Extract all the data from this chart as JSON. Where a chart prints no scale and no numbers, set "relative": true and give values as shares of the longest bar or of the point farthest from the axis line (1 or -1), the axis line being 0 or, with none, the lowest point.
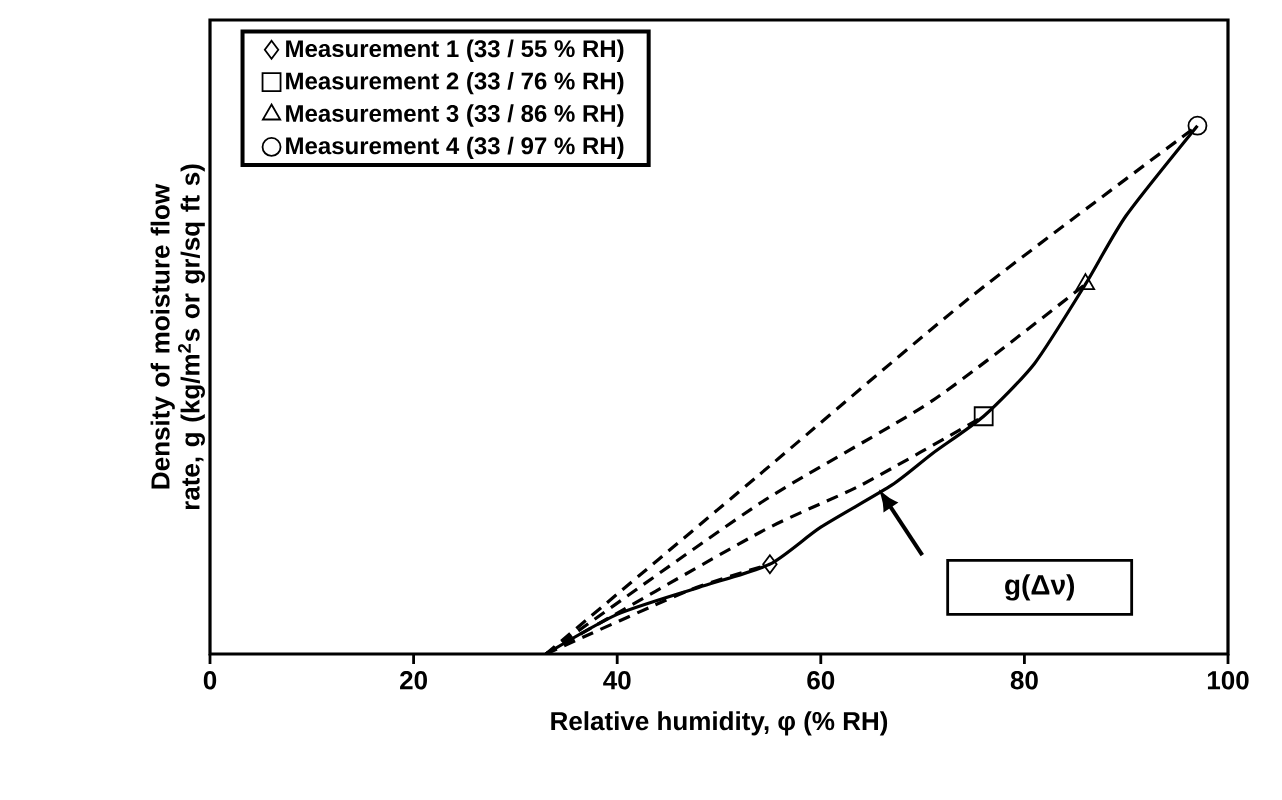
{
  "chart_data": {
    "type": "line",
    "xlabel": "Relative humidity, φ (% RH)",
    "ylabel": "Density of moisture flow rate, g (kg/m$^{2}$s or gr/sq ft s)",
    "relative": true,
    "xlim": [
      0,
      100
    ],
    "xticks": [
      0,
      20,
      40,
      60,
      80,
      100
    ],
    "legend": "top left",
    "annotations": [
      "g(Δν)"
    ],
    "series": [
      {
        "color": "#000000",
        "line_style": "solid",
        "marker": "none",
        "x": [
          33,
          40,
          48,
          55,
          60,
          67,
          71,
          76,
          81,
          86,
          90,
          97
        ],
        "values": [
          0,
          0.075,
          0.126,
          0.17,
          0.24,
          0.32,
          0.38,
          0.45,
          0.55,
          0.7,
          0.83,
          1
        ]
      },
      {
        "type": "line",
        "color": "#000000",
        "line_style": "dashed",
        "marker": "none",
        "x": [
          33,
          47,
          55
        ],
        "values": [
          0,
          0.12,
          0.17
        ]
      },
      {
        "type": "line",
        "color": "#000000",
        "line_style": "dashed",
        "marker": "none",
        "x": [
          33,
          54,
          64,
          76
        ],
        "values": [
          0,
          0.23,
          0.32,
          0.45
        ]
      },
      {
        "type": "line",
        "color": "#000000",
        "line_style": "dashed",
        "marker": "none",
        "x": [
          33,
          54,
          71,
          86
        ],
        "values": [
          0,
          0.285,
          0.48,
          0.7
        ]
      },
      {
        "type": "line",
        "color": "#000000",
        "line_style": "dashed",
        "marker": "none",
        "x": [
          33,
          54,
          75,
          97
        ],
        "values": [
          0,
          0.34,
          0.68,
          1
        ]
      },
      {
        "type": "scatter",
        "name": "Measurement 1 (33 / 55 % RH)",
        "color": "#000000",
        "marker": "diamond",
        "x": [
          55
        ],
        "values": [
          0.17
        ]
      },
      {
        "type": "scatter",
        "name": "Measurement 2 (33 / 76 % RH)",
        "color": "#000000",
        "marker": "square",
        "x": [
          76
        ],
        "values": [
          0.45
        ]
      },
      {
        "type": "scatter",
        "name": "Measurement 3 (33 / 86 % RH)",
        "color": "#000000",
        "marker": "triangle",
        "x": [
          86
        ],
        "values": [
          0.7
        ]
      },
      {
        "type": "scatter",
        "name": "Measurement 4 (33 / 97 % RH)",
        "color": "#000000",
        "marker": "circle",
        "x": [
          97
        ],
        "values": [
          1
        ]
      }
    ]
  }
}
